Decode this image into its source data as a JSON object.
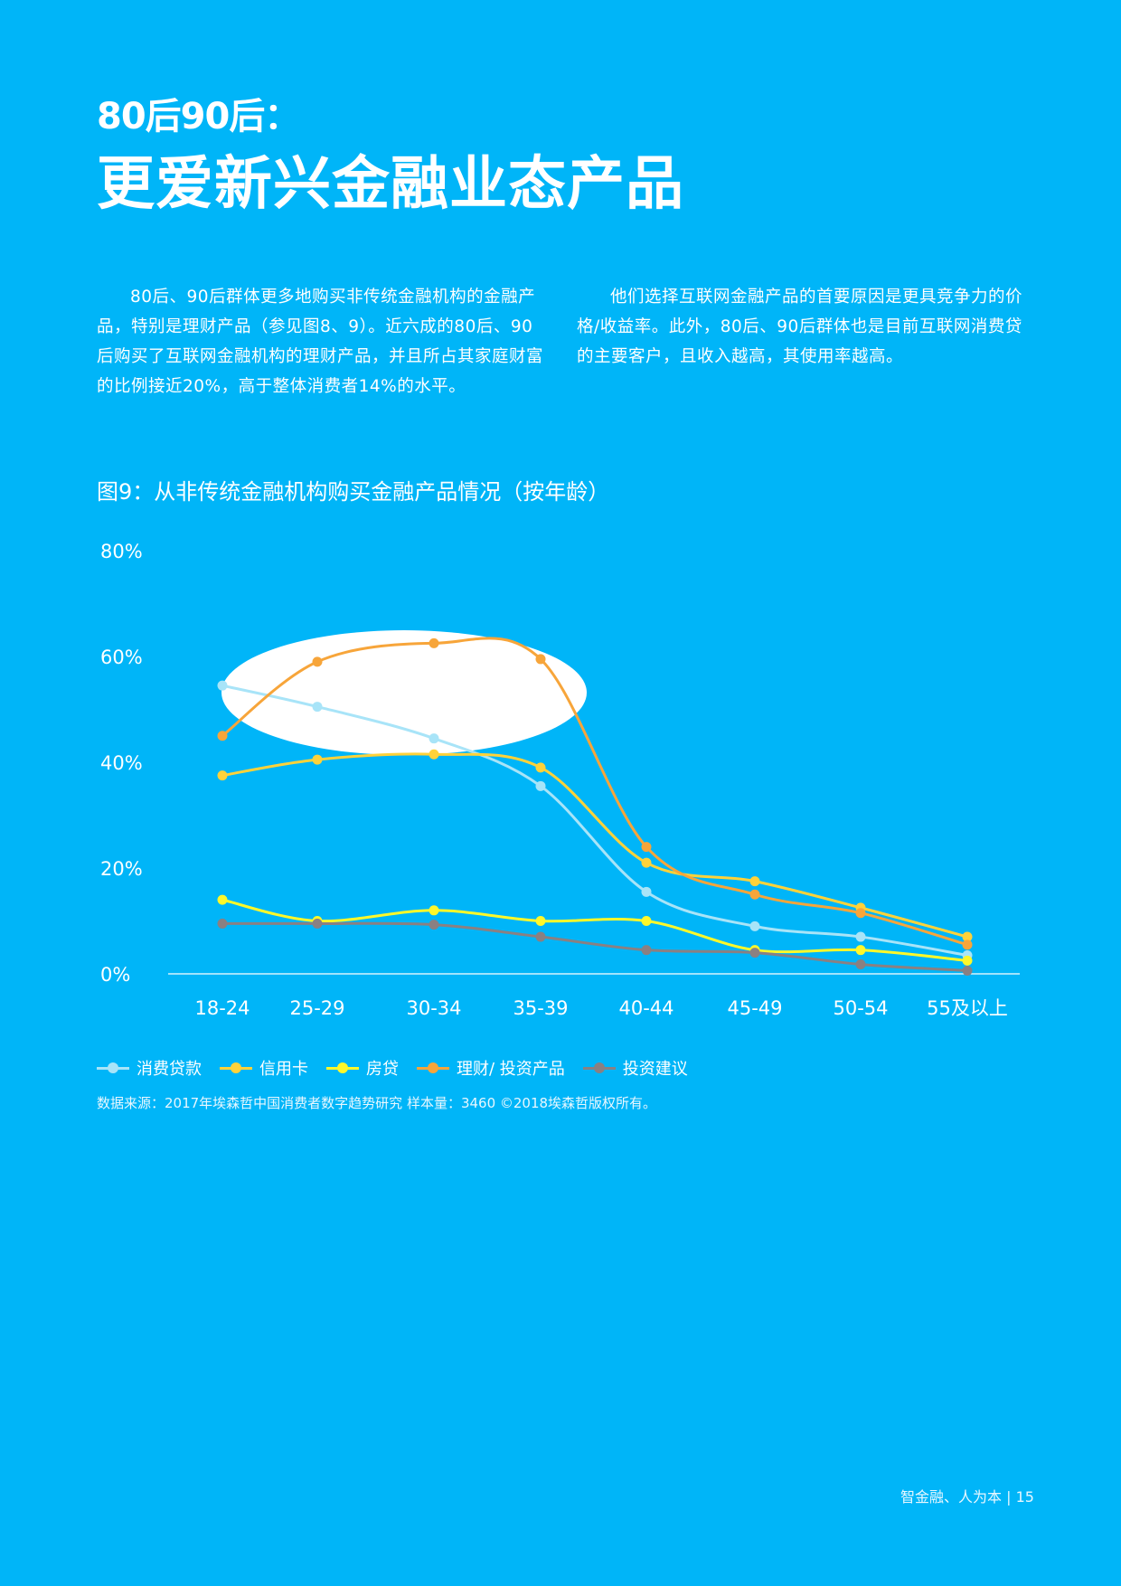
{
  "header": {
    "subtitle": "80后90后：",
    "title": "更爱新兴金融业态产品"
  },
  "body": {
    "left_paragraph": "80后、90后群体更多地购买非传统金融机构的金融产品，特别是理财产品（参见图8、9）。近六成的80后、90后购买了互联网金融机构的理财产品，并且所占其家庭财富的比例接近20%，高于整体消费者14%的水平。",
    "right_paragraph": "他们选择互联网金融产品的首要原因是更具竞争力的价格/收益率。此外，80后、90后群体也是目前互联网消费贷的主要客户，且收入越高，其使用率越高。"
  },
  "chart_title": "图9：从非传统金融机构购买金融产品情况（按年龄）",
  "chart_data": {
    "type": "line",
    "categories": [
      "18-24",
      "25-29",
      "30-34",
      "35-39",
      "40-44",
      "45-49",
      "50-54",
      "55及以上"
    ],
    "y_ticks": [
      "80%",
      "60%",
      "40%",
      "20%",
      "0%"
    ],
    "ylim": [
      0,
      80
    ],
    "series": [
      {
        "name": "消费贷款",
        "color": "#A8E4F8",
        "values": [
          54.5,
          50.5,
          44.5,
          35.5,
          15.5,
          9,
          7,
          3.5
        ]
      },
      {
        "name": "信用卡",
        "color": "#FFD23A",
        "values": [
          37.5,
          40.5,
          41.5,
          39,
          21,
          17.5,
          12.5,
          7
        ]
      },
      {
        "name": "房贷",
        "color": "#FFF82A",
        "values": [
          14,
          10,
          12,
          10,
          10,
          4.5,
          4.5,
          2.5
        ]
      },
      {
        "name": "理财/ 投资产品",
        "color": "#F7A53A",
        "values": [
          45,
          59,
          62.5,
          59.5,
          24,
          15,
          11.5,
          5.5
        ]
      },
      {
        "name": "投资建议",
        "color": "#8A8082",
        "values": [
          9.5,
          9.5,
          9.3,
          7,
          4.5,
          4,
          1.8,
          0.6
        ]
      }
    ]
  },
  "source": "数据来源：2017年埃森哲中国消费者数字趋势研究 样本量：3460 ©2018埃森哲版权所有。",
  "footer": "智金融、人为本 | 15"
}
